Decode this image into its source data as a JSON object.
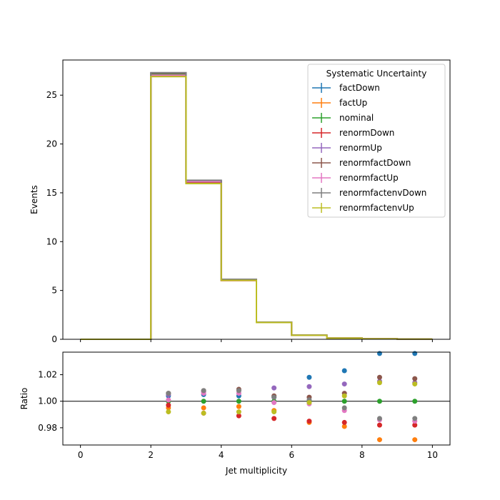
{
  "chart_data": [
    {
      "type": "line",
      "panel": "main",
      "drawstyle": "steps",
      "xlabel": "",
      "ylabel": "Events",
      "xlim": [
        -0.5,
        10.5
      ],
      "ylim": [
        0,
        28.6
      ],
      "yticks": [
        0,
        5,
        10,
        15,
        20,
        25
      ],
      "bin_edges": [
        0,
        1,
        2,
        3,
        4,
        5,
        6,
        7,
        8,
        9,
        10
      ],
      "legend_title": "Systematic Uncertainty",
      "legend_position": "top-right",
      "series": [
        {
          "name": "factDown",
          "color": "#1f77b4",
          "values": [
            0,
            0,
            27.2,
            16.2,
            6.1,
            1.75,
            0.42,
            0.12,
            0.05,
            0.02
          ]
        },
        {
          "name": "factUp",
          "color": "#ff7f0e",
          "values": [
            0,
            0,
            27.0,
            16.0,
            6.05,
            1.72,
            0.41,
            0.12,
            0.05,
            0.02
          ]
        },
        {
          "name": "nominal",
          "color": "#2ca02c",
          "values": [
            0,
            0,
            27.1,
            16.1,
            6.08,
            1.74,
            0.42,
            0.12,
            0.05,
            0.02
          ]
        },
        {
          "name": "renormDown",
          "color": "#d62728",
          "values": [
            0,
            0,
            27.0,
            16.0,
            6.02,
            1.72,
            0.41,
            0.12,
            0.05,
            0.02
          ]
        },
        {
          "name": "renormUp",
          "color": "#9467bd",
          "values": [
            0,
            0,
            27.25,
            16.25,
            6.12,
            1.76,
            0.43,
            0.12,
            0.05,
            0.02
          ]
        },
        {
          "name": "renormfactDown",
          "color": "#8c564b",
          "values": [
            0,
            0,
            27.25,
            16.22,
            6.12,
            1.75,
            0.42,
            0.12,
            0.05,
            0.02
          ]
        },
        {
          "name": "renormfactUp",
          "color": "#e377c2",
          "values": [
            0,
            0,
            27.05,
            16.15,
            6.1,
            1.74,
            0.42,
            0.12,
            0.05,
            0.02
          ]
        },
        {
          "name": "renormfactenvDown",
          "color": "#7f7f7f",
          "values": [
            0,
            0,
            27.3,
            16.28,
            6.14,
            1.76,
            0.43,
            0.12,
            0.05,
            0.02
          ]
        },
        {
          "name": "renormfactenvUp",
          "color": "#bcbd22",
          "values": [
            0,
            0,
            26.9,
            15.95,
            6.03,
            1.72,
            0.41,
            0.12,
            0.05,
            0.02
          ]
        }
      ]
    },
    {
      "type": "scatter",
      "panel": "ratio",
      "xlabel": "Jet multiplicity",
      "ylabel": "Ratio",
      "xlim": [
        -0.5,
        10.5
      ],
      "ylim": [
        0.967,
        1.037
      ],
      "xticks": [
        0,
        2,
        4,
        6,
        8,
        10
      ],
      "yticks": [
        0.98,
        1.0,
        1.02
      ],
      "ytick_labels": [
        "0.98",
        "1.00",
        "1.02"
      ],
      "reference_line": 1.0,
      "x": [
        2.5,
        3.5,
        4.5,
        5.5,
        6.5,
        7.5,
        8.5,
        9.5
      ],
      "series": [
        {
          "name": "factDown",
          "color": "#1f77b4",
          "values": [
            1.004,
            1.005,
            1.004,
            1.003,
            1.018,
            1.023,
            1.036,
            1.036
          ]
        },
        {
          "name": "factUp",
          "color": "#ff7f0e",
          "values": [
            0.995,
            0.995,
            0.996,
            0.993,
            0.984,
            0.981,
            0.971,
            0.971
          ]
        },
        {
          "name": "nominal",
          "color": "#2ca02c",
          "values": [
            1.0,
            1.0,
            1.0,
            1.0,
            1.0,
            1.0,
            1.0,
            1.0
          ]
        },
        {
          "name": "renormDown",
          "color": "#d62728",
          "values": [
            0.997,
            0.991,
            0.989,
            0.987,
            0.985,
            0.984,
            0.982,
            0.982
          ]
        },
        {
          "name": "renormUp",
          "color": "#9467bd",
          "values": [
            1.005,
            1.007,
            1.008,
            1.01,
            1.011,
            1.013,
            1.015,
            1.014
          ]
        },
        {
          "name": "renormfactDown",
          "color": "#8c564b",
          "values": [
            1.006,
            1.008,
            1.009,
            1.004,
            1.003,
            1.006,
            1.018,
            1.017
          ]
        },
        {
          "name": "renormfactUp",
          "color": "#e377c2",
          "values": [
            1.001,
            1.006,
            1.006,
            0.999,
            0.998,
            0.993,
            0.986,
            0.985
          ]
        },
        {
          "name": "renormfactenvDown",
          "color": "#7f7f7f",
          "values": [
            1.006,
            1.008,
            1.008,
            1.003,
            1.001,
            0.995,
            0.987,
            0.987
          ]
        },
        {
          "name": "renormfactenvUp",
          "color": "#bcbd22",
          "values": [
            0.992,
            0.991,
            0.992,
            0.992,
            0.999,
            1.004,
            1.014,
            1.013
          ]
        }
      ]
    }
  ]
}
